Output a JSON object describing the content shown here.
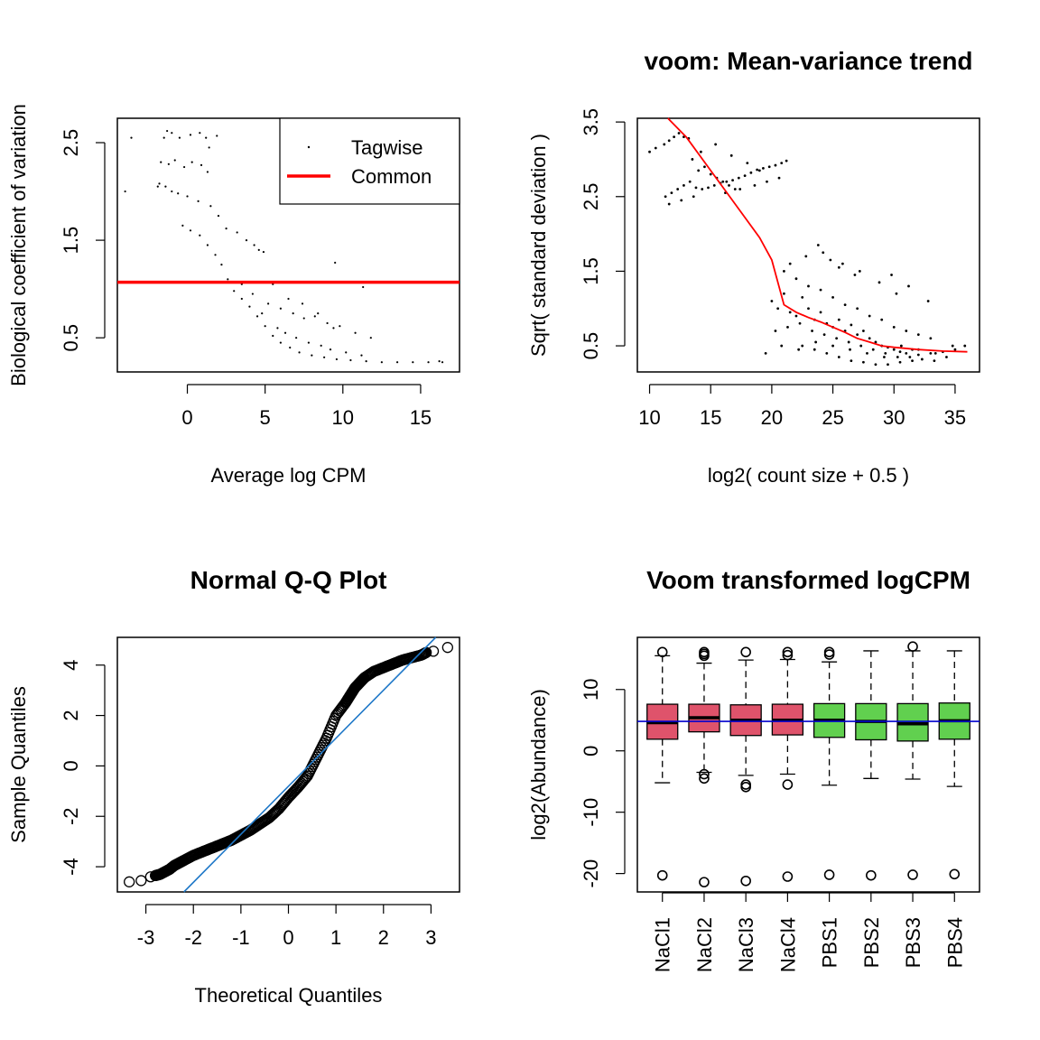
{
  "chart_data": [
    {
      "type": "scatter",
      "title": "",
      "xlabel": "Average log CPM",
      "ylabel": "Biological coefficient of variation",
      "xlim": [
        -4.5,
        17.5
      ],
      "ylim": [
        0.15,
        2.75
      ],
      "xticks": [
        "0",
        "5",
        "10",
        "15"
      ],
      "yticks": [
        "0.5",
        "1.5",
        "2.5"
      ],
      "legend": {
        "position": "top-right",
        "entries": [
          "Tagwise",
          "Common"
        ]
      },
      "colors": {
        "tagwise": "#000000",
        "common": "#ff0000"
      },
      "common_bcv": 1.07,
      "series": [
        {
          "name": "Tagwise",
          "style": "points",
          "x": [
            -4.0,
            -3.6,
            -1.9,
            -1.5,
            -1.3,
            -1.0,
            -0.5,
            0.2,
            0.8,
            1.2,
            1.4,
            1.9,
            -1.7,
            -1.2,
            -0.8,
            -0.2,
            0.3,
            0.9,
            1.3,
            -1.8,
            -1.4,
            -1.0,
            -0.6,
            0.0,
            0.7,
            1.5,
            2.0,
            2.5,
            3.2,
            3.8,
            4.3,
            4.6,
            4.9,
            -0.3,
            0.2,
            0.8,
            1.3,
            1.8,
            2.2,
            2.6,
            3.0,
            3.5,
            4.0,
            4.5,
            5.0,
            5.5,
            6.0,
            6.6,
            7.2,
            8.0,
            8.8,
            9.6,
            10.5,
            11.5,
            12.5,
            13.5,
            14.5,
            15.5,
            16.2,
            16.4,
            3.5,
            4.2,
            5.2,
            6.0,
            6.8,
            7.5,
            8.2,
            9.0,
            9.8,
            10.8,
            11.8,
            5.5,
            6.5,
            7.4,
            8.4,
            9.4,
            4.8,
            5.8,
            6.3,
            7.0,
            7.8,
            8.6,
            9.2,
            10.2,
            11.2,
            9.5,
            11.3
          ],
          "y": [
            2.0,
            2.55,
            2.05,
            2.55,
            2.62,
            2.6,
            2.55,
            2.58,
            2.6,
            2.55,
            2.45,
            2.57,
            2.3,
            2.28,
            2.32,
            2.25,
            2.3,
            2.27,
            2.2,
            2.08,
            2.05,
            2.0,
            1.98,
            1.95,
            1.9,
            1.85,
            1.75,
            1.62,
            1.58,
            1.5,
            1.45,
            1.4,
            1.38,
            1.65,
            1.6,
            1.55,
            1.45,
            1.35,
            1.25,
            1.1,
            0.98,
            0.9,
            0.82,
            0.72,
            0.62,
            0.52,
            0.45,
            0.4,
            0.35,
            0.32,
            0.3,
            0.28,
            0.27,
            0.26,
            0.25,
            0.25,
            0.25,
            0.25,
            0.26,
            0.25,
            1.05,
            0.95,
            0.85,
            0.8,
            0.75,
            0.7,
            0.72,
            0.65,
            0.62,
            0.55,
            0.5,
            1.05,
            0.9,
            0.85,
            0.75,
            0.6,
            0.75,
            0.6,
            0.55,
            0.5,
            0.45,
            0.42,
            0.38,
            0.35,
            0.32,
            1.27,
            1.02
          ]
        },
        {
          "name": "Common",
          "style": "hline",
          "y": 1.07
        }
      ]
    },
    {
      "type": "scatter",
      "title": "voom: Mean-variance trend",
      "xlabel": "log2( count size + 0.5 )",
      "ylabel": "Sqrt( standard deviation )",
      "xlim": [
        9.0,
        37.0
      ],
      "ylim": [
        0.15,
        3.55
      ],
      "xticks": [
        "10",
        "15",
        "20",
        "25",
        "30",
        "35"
      ],
      "yticks": [
        "0.5",
        "1.5",
        "2.5",
        "3.5"
      ],
      "colors": {
        "points": "#000000",
        "trend": "#ff0000"
      },
      "series": [
        {
          "name": "",
          "style": "points",
          "x": [
            10.0,
            10.5,
            11.2,
            11.6,
            12.0,
            12.4,
            12.8,
            13.2,
            11.3,
            11.8,
            12.3,
            12.8,
            13.3,
            13.8,
            14.3,
            14.8,
            15.3,
            15.8,
            16.3,
            16.8,
            17.3,
            17.8,
            18.3,
            18.8,
            19.3,
            19.8,
            20.3,
            20.8,
            21.2,
            14.0,
            14.5,
            15.0,
            15.5,
            16.0,
            16.5,
            17.0,
            13.5,
            14.2,
            15.4,
            16.7,
            18.0,
            19.0,
            11.6,
            12.6,
            13.6,
            16.2,
            17.4,
            18.6,
            19.6,
            20.6,
            20.0,
            20.5,
            21.0,
            21.5,
            22.0,
            22.5,
            23.0,
            23.5,
            24.0,
            24.5,
            25.0,
            25.5,
            26.0,
            26.5,
            27.0,
            27.5,
            28.0,
            28.5,
            29.0,
            29.5,
            30.0,
            30.5,
            31.0,
            31.5,
            32.0,
            33.0,
            34.0,
            35.0,
            35.8,
            20.3,
            21.3,
            22.3,
            23.3,
            24.3,
            25.3,
            26.3,
            27.3,
            28.3,
            29.3,
            30.3,
            31.3,
            32.3,
            33.3,
            34.3,
            21.0,
            22.0,
            23.0,
            24.0,
            25.0,
            26.0,
            27.0,
            28.0,
            29.0,
            30.0,
            31.0,
            32.0,
            33.0,
            22.5,
            23.5,
            24.5,
            25.5,
            26.5,
            27.5,
            28.5,
            29.5,
            30.5,
            31.5,
            21.5,
            22.8,
            24.2,
            25.8,
            27.2,
            28.8,
            30.2,
            23.8,
            24.8,
            25.5,
            26.8,
            29.8,
            31.2,
            32.8,
            19.5,
            20.8,
            22.2,
            23.6,
            25.0,
            26.4,
            27.8,
            29.2,
            30.6,
            32.0,
            33.4,
            34.8
          ],
          "y": [
            3.1,
            3.15,
            3.2,
            3.25,
            3.3,
            3.35,
            3.3,
            3.28,
            2.5,
            2.55,
            2.6,
            2.65,
            2.7,
            2.62,
            2.6,
            2.62,
            2.65,
            2.68,
            2.7,
            2.72,
            2.75,
            2.78,
            2.82,
            2.86,
            2.88,
            2.9,
            2.92,
            2.95,
            2.98,
            2.85,
            2.9,
            2.8,
            2.75,
            2.7,
            2.65,
            2.6,
            3.0,
            3.1,
            3.2,
            3.05,
            2.95,
            2.85,
            2.4,
            2.45,
            2.5,
            2.55,
            2.6,
            2.65,
            2.7,
            2.75,
            1.1,
            1.0,
            1.2,
            0.95,
            0.9,
            1.15,
            1.0,
            0.85,
            0.95,
            0.8,
            0.75,
            0.85,
            0.7,
            0.78,
            0.65,
            0.7,
            0.6,
            0.55,
            0.5,
            0.48,
            0.45,
            0.42,
            0.4,
            0.45,
            0.38,
            0.4,
            0.42,
            0.45,
            0.5,
            0.7,
            0.75,
            0.8,
            0.7,
            0.65,
            0.6,
            0.55,
            0.5,
            0.45,
            0.4,
            0.35,
            0.35,
            0.32,
            0.3,
            0.35,
            1.5,
            1.4,
            1.3,
            1.25,
            1.15,
            1.05,
            1.0,
            0.9,
            0.85,
            0.75,
            0.7,
            0.65,
            0.6,
            0.5,
            0.45,
            0.4,
            0.35,
            0.3,
            0.28,
            0.25,
            0.25,
            0.28,
            0.3,
            1.6,
            1.7,
            1.75,
            1.6,
            1.5,
            1.35,
            1.2,
            1.85,
            1.65,
            1.55,
            1.45,
            1.45,
            1.3,
            1.1,
            0.4,
            0.5,
            0.45,
            0.55,
            0.5,
            0.45,
            0.4,
            0.35,
            0.5,
            0.45,
            0.4,
            0.5
          ]
        },
        {
          "name": "",
          "style": "line",
          "x": [
            11.5,
            13.0,
            15.0,
            17.0,
            19.0,
            20.0,
            21.0,
            22.0,
            23.0,
            24.0,
            25.0,
            26.0,
            27.0,
            28.0,
            29.0,
            30.0,
            32.0,
            34.0,
            36.0
          ],
          "y": [
            3.55,
            3.3,
            2.85,
            2.4,
            1.95,
            1.65,
            1.05,
            0.95,
            0.88,
            0.82,
            0.75,
            0.68,
            0.6,
            0.55,
            0.5,
            0.48,
            0.45,
            0.43,
            0.42
          ]
        }
      ]
    },
    {
      "type": "scatter",
      "title": "Normal Q-Q Plot",
      "xlabel": "Theoretical Quantiles",
      "ylabel": "Sample Quantiles",
      "xlim": [
        -3.6,
        3.6
      ],
      "ylim": [
        -5.0,
        5.1
      ],
      "xticks": [
        "-3",
        "-2",
        "-1",
        "0",
        "1",
        "2",
        "3"
      ],
      "yticks": [
        "-4",
        "-2",
        "0",
        "2",
        "4"
      ],
      "colors": {
        "points": "#000000",
        "qqline": "#1f78c8"
      },
      "qqline": {
        "x": [
          -2.2,
          3.1
        ],
        "y": [
          -5.0,
          5.1
        ]
      },
      "series": [
        {
          "name": "",
          "style": "points",
          "x": [
            -3.35,
            -3.1,
            -2.9,
            -2.8,
            -2.7,
            -2.6,
            -2.5,
            -2.4,
            -2.3,
            -2.2,
            -2.0,
            -1.8,
            -1.6,
            -1.4,
            -1.2,
            -1.0,
            -0.8,
            -0.6,
            -0.4,
            -0.2,
            0.0,
            0.2,
            0.4,
            0.6,
            0.8,
            1.0,
            1.2,
            1.3,
            1.4,
            1.5,
            1.6,
            1.8,
            2.0,
            2.2,
            2.4,
            2.6,
            2.8,
            2.9,
            3.05,
            3.35
          ],
          "y": [
            -4.6,
            -4.55,
            -4.4,
            -4.35,
            -4.3,
            -4.2,
            -4.1,
            -3.95,
            -3.85,
            -3.75,
            -3.55,
            -3.4,
            -3.25,
            -3.1,
            -2.95,
            -2.75,
            -2.55,
            -2.3,
            -2.05,
            -1.7,
            -1.25,
            -0.85,
            -0.4,
            0.35,
            1.1,
            2.0,
            2.5,
            2.8,
            3.1,
            3.3,
            3.5,
            3.75,
            3.9,
            4.05,
            4.2,
            4.3,
            4.4,
            4.5,
            4.55,
            4.7
          ]
        }
      ]
    },
    {
      "type": "box",
      "title": "Voom transformed logCPM",
      "xlabel": "",
      "ylabel": "log2(Abundance)",
      "ylim": [
        -23.0,
        18.5
      ],
      "yticks": [
        "10",
        "0",
        "-10",
        "-20"
      ],
      "categories": [
        "NaCl1",
        "NaCl2",
        "NaCl3",
        "NaCl4",
        "PBS1",
        "PBS2",
        "PBS3",
        "PBS4"
      ],
      "colors": {
        "NaCl": "#df536b",
        "PBS": "#61d04f",
        "median_line": "#0000cd"
      },
      "median_line": 4.8,
      "boxes": [
        {
          "low": -5.2,
          "q1": 1.9,
          "median": 4.6,
          "q3": 7.6,
          "high": 15.5,
          "outliers": [
            16.1,
            -20.3
          ]
        },
        {
          "low": -3.5,
          "q1": 3.1,
          "median": 5.4,
          "q3": 7.6,
          "high": 14.3,
          "outliers": [
            15.5,
            15.8,
            16.1,
            -3.8,
            -4.5,
            -21.4
          ]
        },
        {
          "low": -4.0,
          "q1": 2.5,
          "median": 5.0,
          "q3": 7.5,
          "high": 14.8,
          "outliers": [
            16.1,
            -5.5,
            -5.9,
            -21.2
          ]
        },
        {
          "low": -3.8,
          "q1": 2.6,
          "median": 5.0,
          "q3": 7.6,
          "high": 14.9,
          "outliers": [
            15.6,
            16.1,
            -5.5,
            -20.5
          ]
        },
        {
          "low": -5.6,
          "q1": 2.2,
          "median": 5.0,
          "q3": 7.7,
          "high": 14.5,
          "outliers": [
            15.7,
            16.1,
            -20.2
          ]
        },
        {
          "low": -4.5,
          "q1": 1.8,
          "median": 4.8,
          "q3": 7.7,
          "high": 16.3,
          "outliers": [
            -20.3
          ]
        },
        {
          "low": -4.6,
          "q1": 1.6,
          "median": 4.4,
          "q3": 7.7,
          "high": 16.3,
          "outliers": [
            17.0,
            -20.2
          ]
        },
        {
          "low": -5.8,
          "q1": 1.9,
          "median": 4.9,
          "q3": 7.8,
          "high": 16.3,
          "outliers": [
            -20.1
          ]
        }
      ]
    }
  ]
}
